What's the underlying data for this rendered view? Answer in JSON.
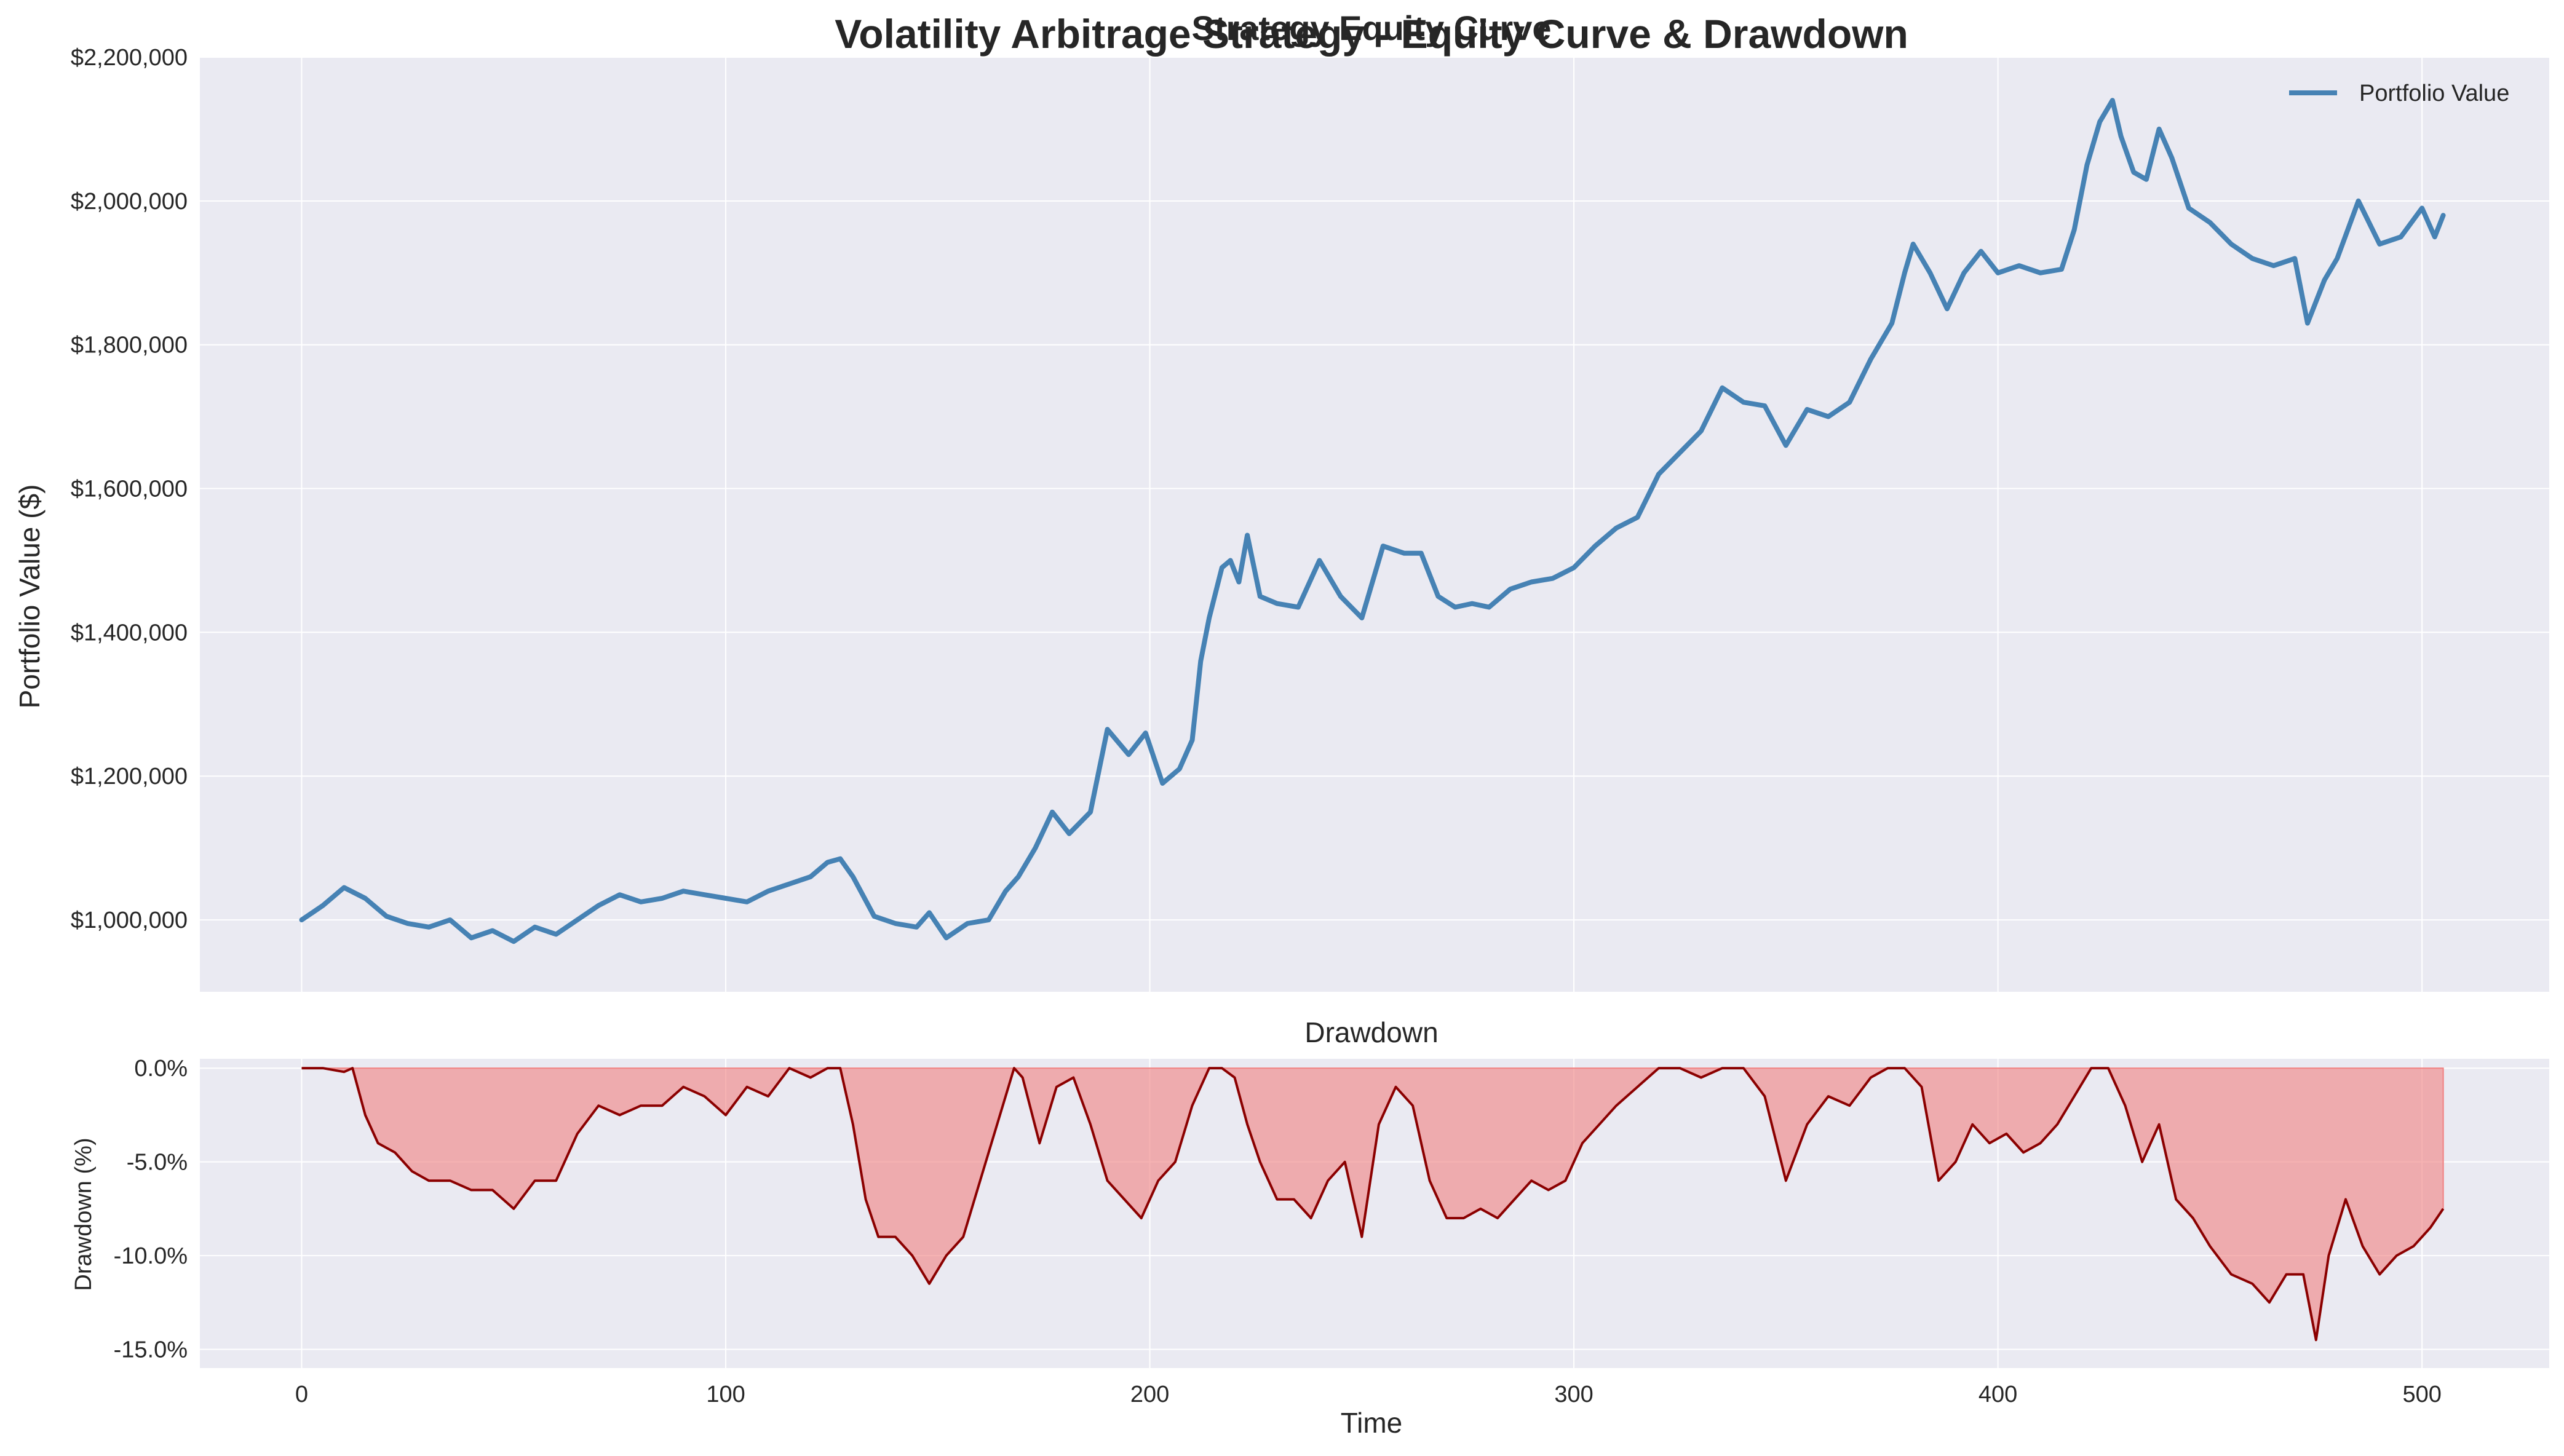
{
  "figure": {
    "suptitle": "Volatility Arbitrage Strategy - Equity Curve & Drawdown",
    "overlapping_title": "Strategy Equity Curve"
  },
  "colors": {
    "background": "#ffffff",
    "axes_face": "#eaeaf2",
    "grid": "#ffffff",
    "equity_line": "#4682b4",
    "drawdown_line": "#8b0000",
    "drawdown_fill": "#f08080",
    "text": "#262626"
  },
  "chart_data": [
    {
      "type": "line",
      "title": "Strategy Equity Curve",
      "xlabel": "",
      "ylabel": "Portfolio Value ($)",
      "ylim": [
        900000,
        2200000
      ],
      "xlim": [
        -24,
        530
      ],
      "y_ticks": [
        1000000,
        1200000,
        1400000,
        1600000,
        1800000,
        2000000,
        2200000
      ],
      "y_tick_labels": [
        "$1,000,000",
        "$1,200,000",
        "$1,400,000",
        "$1,600,000",
        "$1,800,000",
        "$2,000,000",
        "$2,200,000"
      ],
      "x_ticks": [
        0,
        100,
        200,
        300,
        400,
        500
      ],
      "x_tick_labels_visible": false,
      "grid": true,
      "legend_position": "top-right",
      "series": [
        {
          "name": "Portfolio Value",
          "x": [
            0,
            5,
            10,
            15,
            20,
            25,
            30,
            35,
            40,
            45,
            50,
            55,
            60,
            65,
            70,
            75,
            80,
            85,
            90,
            95,
            100,
            105,
            110,
            115,
            120,
            124,
            127,
            130,
            135,
            140,
            145,
            148,
            152,
            157,
            162,
            166,
            169,
            173,
            177,
            181,
            186,
            190,
            195,
            199,
            203,
            207,
            210,
            212,
            214,
            217,
            219,
            221,
            223,
            226,
            230,
            235,
            240,
            245,
            250,
            255,
            260,
            264,
            268,
            272,
            276,
            280,
            285,
            290,
            295,
            300,
            305,
            310,
            315,
            320,
            325,
            330,
            335,
            340,
            345,
            350,
            355,
            360,
            365,
            370,
            375,
            378,
            380,
            384,
            388,
            392,
            396,
            400,
            405,
            410,
            415,
            418,
            421,
            424,
            427,
            429,
            432,
            435,
            438,
            441,
            445,
            450,
            455,
            460,
            465,
            470,
            473,
            477,
            480,
            485,
            490,
            495,
            500,
            503,
            505
          ],
          "values": [
            1000000,
            1020000,
            1045000,
            1030000,
            1005000,
            995000,
            990000,
            1000000,
            975000,
            985000,
            970000,
            990000,
            980000,
            1000000,
            1020000,
            1035000,
            1025000,
            1030000,
            1040000,
            1035000,
            1030000,
            1025000,
            1040000,
            1050000,
            1060000,
            1080000,
            1085000,
            1060000,
            1005000,
            995000,
            990000,
            1010000,
            975000,
            995000,
            1000000,
            1040000,
            1060000,
            1100000,
            1150000,
            1120000,
            1150000,
            1265000,
            1230000,
            1260000,
            1190000,
            1210000,
            1250000,
            1360000,
            1420000,
            1490000,
            1500000,
            1470000,
            1535000,
            1450000,
            1440000,
            1435000,
            1500000,
            1450000,
            1420000,
            1520000,
            1510000,
            1510000,
            1450000,
            1435000,
            1440000,
            1435000,
            1460000,
            1470000,
            1475000,
            1490000,
            1520000,
            1545000,
            1560000,
            1620000,
            1650000,
            1680000,
            1740000,
            1720000,
            1715000,
            1660000,
            1710000,
            1700000,
            1720000,
            1780000,
            1830000,
            1900000,
            1940000,
            1900000,
            1850000,
            1900000,
            1930000,
            1900000,
            1910000,
            1900000,
            1905000,
            1960000,
            2050000,
            2110000,
            2140000,
            2090000,
            2040000,
            2030000,
            2100000,
            2060000,
            1990000,
            1970000,
            1940000,
            1920000,
            1910000,
            1920000,
            1830000,
            1890000,
            1920000,
            2000000,
            1940000,
            1950000,
            1990000,
            1950000,
            1980000
          ]
        }
      ]
    },
    {
      "type": "area",
      "title": "Drawdown",
      "xlabel": "Time",
      "ylabel": "Drawdown (%)",
      "ylim": [
        -16,
        0.5
      ],
      "xlim": [
        -24,
        530
      ],
      "y_ticks": [
        0,
        -5,
        -10,
        -15
      ],
      "y_tick_labels": [
        "0.0%",
        "-5.0%",
        "-10.0%",
        "-15.0%"
      ],
      "x_ticks": [
        0,
        100,
        200,
        300,
        400,
        500
      ],
      "x_tick_labels": [
        "0",
        "100",
        "200",
        "300",
        "400",
        "500"
      ],
      "grid": true,
      "series": [
        {
          "x": [
            0,
            5,
            10,
            12,
            15,
            18,
            22,
            26,
            30,
            35,
            40,
            45,
            50,
            55,
            60,
            65,
            70,
            75,
            80,
            85,
            90,
            95,
            100,
            105,
            110,
            115,
            120,
            124,
            127,
            130,
            133,
            136,
            140,
            144,
            148,
            152,
            156,
            160,
            164,
            168,
            170,
            174,
            178,
            182,
            186,
            190,
            194,
            198,
            202,
            206,
            210,
            214,
            217,
            220,
            223,
            226,
            230,
            234,
            238,
            242,
            246,
            250,
            254,
            258,
            262,
            266,
            270,
            274,
            278,
            282,
            286,
            290,
            294,
            298,
            302,
            306,
            310,
            315,
            320,
            325,
            330,
            335,
            340,
            345,
            350,
            355,
            360,
            365,
            370,
            374,
            378,
            382,
            386,
            390,
            394,
            398,
            402,
            406,
            410,
            414,
            418,
            422,
            426,
            430,
            434,
            438,
            442,
            446,
            450,
            455,
            460,
            464,
            468,
            472,
            475,
            478,
            482,
            486,
            490,
            494,
            498,
            502,
            505
          ],
          "values": [
            0,
            0,
            -0.2,
            0,
            -2.5,
            -4,
            -4.5,
            -5.5,
            -6,
            -6,
            -6.5,
            -6.5,
            -7.5,
            -6,
            -6,
            -3.5,
            -2,
            -2.5,
            -2,
            -2,
            -1,
            -1.5,
            -2.5,
            -1,
            -1.5,
            0,
            -0.5,
            0,
            0,
            -3,
            -7,
            -9,
            -9,
            -10,
            -11.5,
            -10,
            -9,
            -6,
            -3,
            0,
            -0.5,
            -4,
            -1,
            -0.5,
            -3,
            -6,
            -7,
            -8,
            -6,
            -5,
            -2,
            0,
            0,
            -0.5,
            -3,
            -5,
            -7,
            -7,
            -8,
            -6,
            -5,
            -9,
            -3,
            -1,
            -2,
            -6,
            -8,
            -8,
            -7.5,
            -8,
            -7,
            -6,
            -6.5,
            -6,
            -4,
            -3,
            -2,
            -1,
            0,
            0,
            -0.5,
            0,
            0,
            -1.5,
            -6,
            -3,
            -1.5,
            -2,
            -0.5,
            0,
            0,
            -1,
            -6,
            -5,
            -3,
            -4,
            -3.5,
            -4.5,
            -4,
            -3,
            -1.5,
            0,
            0,
            -2,
            -5,
            -3,
            -7,
            -8,
            -9.5,
            -11,
            -11.5,
            -12.5,
            -11,
            -11,
            -14.5,
            -10,
            -7,
            -9.5,
            -11,
            -10,
            -9.5,
            -8.5,
            -7.5
          ]
        }
      ]
    }
  ]
}
